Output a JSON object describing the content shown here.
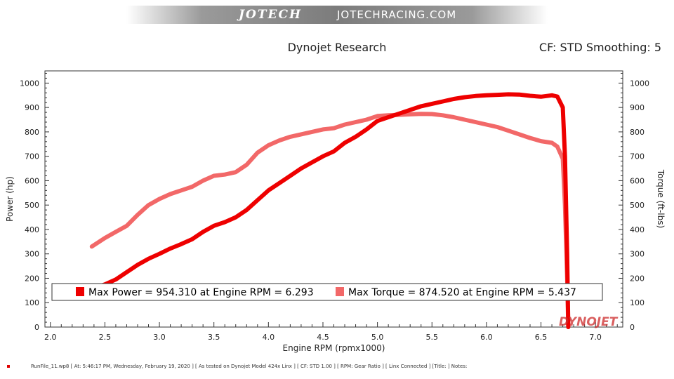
{
  "banner": {
    "logo": "JOTECH",
    "site": "JOTECHRACING.COM"
  },
  "header": {
    "title": "Dynojet Research",
    "cf_text": "CF: STD Smoothing: 5"
  },
  "watermark": "DYNOJET",
  "footer_text": "RunFile_11.wp8 [ At: 5:46:17 PM, Wednesday, February 19, 2020 ] [ As tested on Dynojet Model 424x Linx ] [ CF: STD 1.00 ] [ RPM: Gear Ratio ] [ Linx Connected ] [Title: ] Notes:",
  "colors": {
    "power": "#ee0000",
    "torque": "#f26868",
    "axis": "#333333"
  },
  "chart_data": {
    "type": "line",
    "xlabel": "Engine RPM (rpmx1000)",
    "ylabel": "Power (hp)",
    "y2label": "Torque (ft-lbs)",
    "xlim": [
      1.95,
      7.25
    ],
    "ylim": [
      0,
      1050
    ],
    "y2lim": [
      0,
      1050
    ],
    "x_ticks": [
      "2.0",
      "2.5",
      "3.0",
      "3.5",
      "4.0",
      "4.5",
      "5.0",
      "5.5",
      "6.0",
      "6.5",
      "7.0"
    ],
    "x_tick_values": [
      2.0,
      2.5,
      3.0,
      3.5,
      4.0,
      4.5,
      5.0,
      5.5,
      6.0,
      6.5,
      7.0
    ],
    "y_ticks": [
      "0",
      "100",
      "200",
      "300",
      "400",
      "500",
      "600",
      "700",
      "800",
      "900",
      "1000"
    ],
    "y_tick_values": [
      0,
      100,
      200,
      300,
      400,
      500,
      600,
      700,
      800,
      900,
      1000
    ],
    "legend": {
      "power_label": "Max Power = 954.310 at Engine RPM = 6.293",
      "torque_label": "Max Torque = 874.520 at Engine RPM = 5.437"
    },
    "series": [
      {
        "name": "Power",
        "axis": "left",
        "x": [
          2.4,
          2.5,
          2.6,
          2.7,
          2.8,
          2.9,
          3.0,
          3.1,
          3.2,
          3.3,
          3.4,
          3.5,
          3.6,
          3.7,
          3.8,
          3.9,
          4.0,
          4.1,
          4.2,
          4.3,
          4.4,
          4.5,
          4.6,
          4.7,
          4.8,
          4.9,
          5.0,
          5.1,
          5.2,
          5.3,
          5.4,
          5.5,
          5.6,
          5.7,
          5.8,
          5.9,
          6.0,
          6.1,
          6.2,
          6.3,
          6.4,
          6.5,
          6.6,
          6.65,
          6.7,
          6.72,
          6.74,
          6.75
        ],
        "y": [
          160,
          175,
          195,
          225,
          255,
          280,
          300,
          322,
          340,
          360,
          390,
          415,
          430,
          450,
          480,
          520,
          560,
          590,
          620,
          650,
          675,
          700,
          720,
          755,
          780,
          810,
          845,
          860,
          875,
          890,
          905,
          915,
          925,
          935,
          942,
          947,
          950,
          952,
          954,
          953,
          948,
          944,
          950,
          945,
          900,
          700,
          300,
          0
        ]
      },
      {
        "name": "Torque",
        "axis": "right",
        "x": [
          2.38,
          2.5,
          2.6,
          2.7,
          2.8,
          2.9,
          3.0,
          3.1,
          3.2,
          3.3,
          3.4,
          3.5,
          3.6,
          3.7,
          3.8,
          3.9,
          4.0,
          4.1,
          4.2,
          4.3,
          4.4,
          4.5,
          4.6,
          4.7,
          4.8,
          4.9,
          5.0,
          5.1,
          5.2,
          5.3,
          5.4,
          5.5,
          5.6,
          5.7,
          5.8,
          5.9,
          6.0,
          6.1,
          6.2,
          6.3,
          6.4,
          6.5,
          6.6,
          6.65,
          6.7,
          6.72,
          6.74,
          6.75
        ],
        "y": [
          330,
          365,
          390,
          415,
          460,
          500,
          525,
          545,
          560,
          575,
          600,
          620,
          625,
          635,
          665,
          715,
          745,
          765,
          780,
          790,
          800,
          810,
          815,
          830,
          840,
          850,
          865,
          868,
          870,
          872,
          874,
          873,
          868,
          860,
          850,
          840,
          830,
          820,
          805,
          790,
          775,
          762,
          755,
          740,
          690,
          500,
          200,
          0
        ]
      }
    ]
  }
}
